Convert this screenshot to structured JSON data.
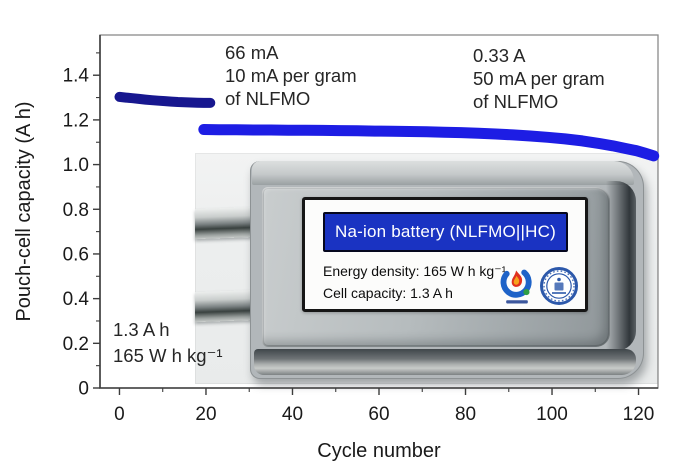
{
  "figure": {
    "background": "#ffffff"
  },
  "chart_data": {
    "type": "scatter",
    "title": "",
    "xlabel": "Cycle number",
    "ylabel": "Pouch-cell capacity (A h)",
    "xlim": [
      -4.5,
      124.5
    ],
    "ylim": [
      0,
      1.58
    ],
    "grid": false,
    "legend": "none",
    "x_ticks": {
      "values": [
        0,
        20,
        40,
        60,
        80,
        100,
        120
      ],
      "labels": [
        "0",
        "20",
        "40",
        "60",
        "80",
        "100",
        "120"
      ],
      "minor": [
        10,
        30,
        50,
        70,
        90,
        110
      ]
    },
    "y_ticks": {
      "values": [
        0,
        0.2,
        0.4,
        0.6,
        0.8,
        1.0,
        1.2,
        1.4
      ],
      "labels": [
        "0",
        "0.2",
        "0.4",
        "0.6",
        "0.8",
        "1.0",
        "1.2",
        "1.4"
      ],
      "minor": [
        0.1,
        0.3,
        0.5,
        0.7,
        0.9,
        1.1,
        1.3,
        1.5
      ]
    },
    "style": {
      "frame_color": "#8a8a8a",
      "spine_color": "#3c3c3c",
      "tick_label_color": "#1a1a1a"
    },
    "series": [
      {
        "name": "66 mA (10 mA per gram of NLFMO)",
        "color": "#17178f",
        "band_width": 10,
        "x": [
          0,
          1.5,
          3,
          4.5,
          6,
          7.5,
          9,
          10.5,
          12,
          13.5,
          15,
          16.5,
          18,
          19.5,
          21
        ],
        "y": [
          1.303,
          1.3,
          1.297,
          1.294,
          1.291,
          1.288,
          1.286,
          1.284,
          1.282,
          1.28,
          1.279,
          1.278,
          1.277,
          1.276,
          1.276
        ]
      },
      {
        "name": "0.33 A (50 mA per gram of NLFMO)",
        "color": "#1d1de4",
        "band_width": 11,
        "x": [
          19.5,
          23,
          27,
          31,
          35,
          39,
          43,
          47,
          51,
          55,
          59,
          63,
          67,
          71,
          75,
          79,
          83,
          87,
          91,
          95,
          99,
          103,
          107,
          111,
          114,
          117,
          119.5,
          121.5,
          123.5
        ],
        "y": [
          1.157,
          1.156,
          1.156,
          1.155,
          1.155,
          1.154,
          1.154,
          1.153,
          1.152,
          1.151,
          1.15,
          1.149,
          1.148,
          1.147,
          1.145,
          1.143,
          1.14,
          1.137,
          1.133,
          1.128,
          1.122,
          1.115,
          1.106,
          1.094,
          1.084,
          1.072,
          1.062,
          1.051,
          1.039
        ]
      }
    ],
    "annotations": {
      "rate1": [
        "66 mA",
        "10 mA per gram",
        "of NLFMO"
      ],
      "rate2": [
        "0.33 A",
        "50 mA per gram",
        "of NLFMO"
      ],
      "capacity": [
        "1.3 A h",
        "165 W h kg⁻¹"
      ]
    }
  },
  "inset": {
    "banner": "Na-ion battery (NLFMO||HC)",
    "energy_density": "Energy density: 165 W h kg⁻¹",
    "cell_capacity": "Cell capacity: 1.3 A h",
    "colors": {
      "banner_bg": "#1a33c2",
      "banner_border": "#05071e"
    }
  }
}
